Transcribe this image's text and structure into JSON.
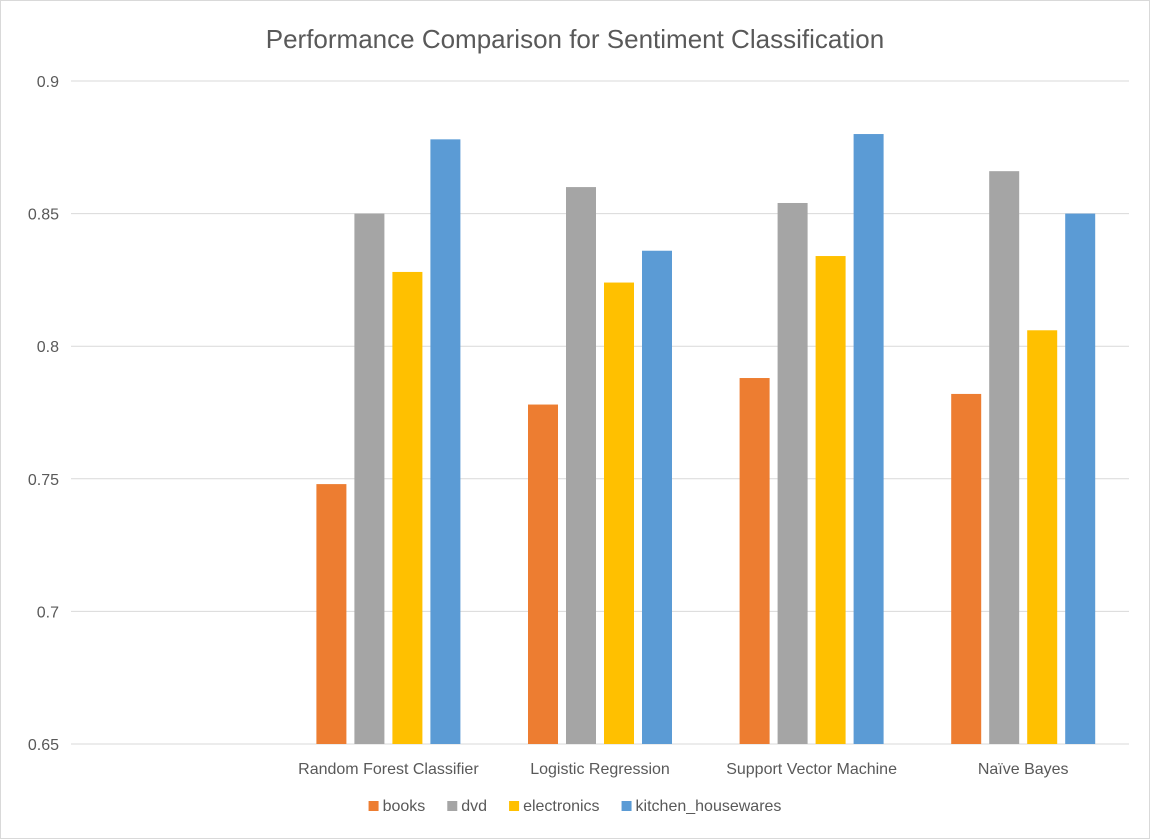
{
  "chart_data": {
    "type": "bar",
    "title": "Performance Comparison for Sentiment Classification",
    "xlabel": "",
    "ylabel": "",
    "ylim": [
      0.65,
      0.9
    ],
    "yticks": [
      "0.9",
      "0.85",
      "0.8",
      "0.75",
      "0.7",
      "0.65"
    ],
    "ytick_values": [
      0.9,
      0.85,
      0.8,
      0.75,
      0.7,
      0.65
    ],
    "grid": true,
    "legend_position": "bottom",
    "categories": [
      "",
      "Random Forest Classifier",
      "Logistic Regression",
      "Support Vector Machine",
      "Naïve Bayes"
    ],
    "series": [
      {
        "name": "books",
        "color": "#ED7D31",
        "values": [
          null,
          0.748,
          0.778,
          0.788,
          0.782
        ]
      },
      {
        "name": "dvd",
        "color": "#A5A5A5",
        "values": [
          null,
          0.85,
          0.86,
          0.854,
          0.866
        ]
      },
      {
        "name": "electronics",
        "color": "#FFC000",
        "values": [
          null,
          0.828,
          0.824,
          0.834,
          0.806
        ]
      },
      {
        "name": "kitchen_housewares",
        "color": "#5B9BD5",
        "values": [
          null,
          0.878,
          0.836,
          0.88,
          0.85
        ]
      }
    ]
  }
}
